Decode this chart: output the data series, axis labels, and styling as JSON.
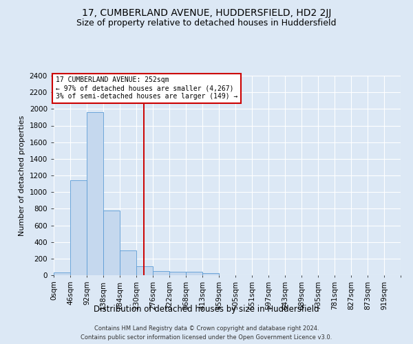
{
  "title": "17, CUMBERLAND AVENUE, HUDDERSFIELD, HD2 2JJ",
  "subtitle": "Size of property relative to detached houses in Huddersfield",
  "xlabel": "Distribution of detached houses by size in Huddersfield",
  "ylabel": "Number of detached properties",
  "footer_line1": "Contains HM Land Registry data © Crown copyright and database right 2024.",
  "footer_line2": "Contains public sector information licensed under the Open Government Licence v3.0.",
  "bar_labels": [
    "0sqm",
    "46sqm",
    "92sqm",
    "138sqm",
    "184sqm",
    "230sqm",
    "276sqm",
    "322sqm",
    "368sqm",
    "413sqm",
    "459sqm",
    "505sqm",
    "551sqm",
    "597sqm",
    "643sqm",
    "689sqm",
    "735sqm",
    "781sqm",
    "827sqm",
    "873sqm",
    "919sqm"
  ],
  "bar_values": [
    35,
    1140,
    1960,
    775,
    300,
    105,
    48,
    42,
    38,
    22,
    0,
    0,
    0,
    0,
    0,
    0,
    0,
    0,
    0,
    0,
    0
  ],
  "bar_color": "#c5d8ee",
  "bar_edge_color": "#5b9bd5",
  "property_value": 252,
  "annotation_line1": "17 CUMBERLAND AVENUE: 252sqm",
  "annotation_line2": "← 97% of detached houses are smaller (4,267)",
  "annotation_line3": "3% of semi-detached houses are larger (149) →",
  "vline_color": "#cc0000",
  "annotation_box_color": "#ffffff",
  "annotation_box_edge": "#cc0000",
  "ylim": [
    0,
    2400
  ],
  "yticks": [
    0,
    200,
    400,
    600,
    800,
    1000,
    1200,
    1400,
    1600,
    1800,
    2000,
    2200,
    2400
  ],
  "background_color": "#dce8f5",
  "grid_color": "#ffffff",
  "title_fontsize": 10,
  "subtitle_fontsize": 9,
  "xlabel_fontsize": 8.5,
  "ylabel_fontsize": 8,
  "tick_fontsize": 7.5,
  "annotation_fontsize": 7,
  "footer_fontsize": 6
}
